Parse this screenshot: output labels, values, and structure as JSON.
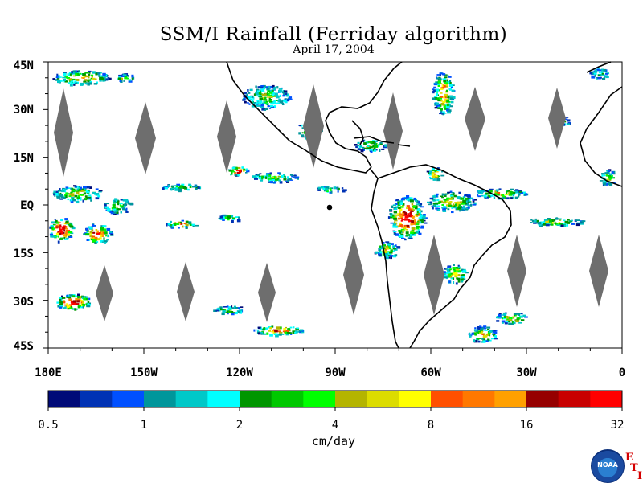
{
  "title": "SSM/I Rainfall (Ferriday algorithm)",
  "subtitle": "April 17, 2004",
  "y_axis_labels": [
    "45N",
    "30N",
    "15N",
    "EQ",
    "15S",
    "30S",
    "45S"
  ],
  "x_axis_labels": [
    "180E",
    "150W",
    "120W",
    "90W",
    "60W",
    "30W",
    "0"
  ],
  "colorbar": {
    "units": "cm/day",
    "tick_labels": [
      "0.5",
      "1",
      "2",
      "4",
      "8",
      "16",
      "32"
    ],
    "colors": [
      "#000a78",
      "#0032b4",
      "#0050ff",
      "#00969b",
      "#00c8c8",
      "#00ffff",
      "#009600",
      "#00c800",
      "#00ff00",
      "#b4b400",
      "#dcdc00",
      "#ffff00",
      "#ff5000",
      "#ff7800",
      "#ffa000",
      "#960000",
      "#c80000",
      "#ff0000"
    ]
  },
  "logo": {
    "text": "NOAA",
    "letters": [
      "E",
      "T",
      "I"
    ]
  },
  "colors": {
    "coast": "#000000",
    "swath_gap": "#6e6e6e"
  }
}
